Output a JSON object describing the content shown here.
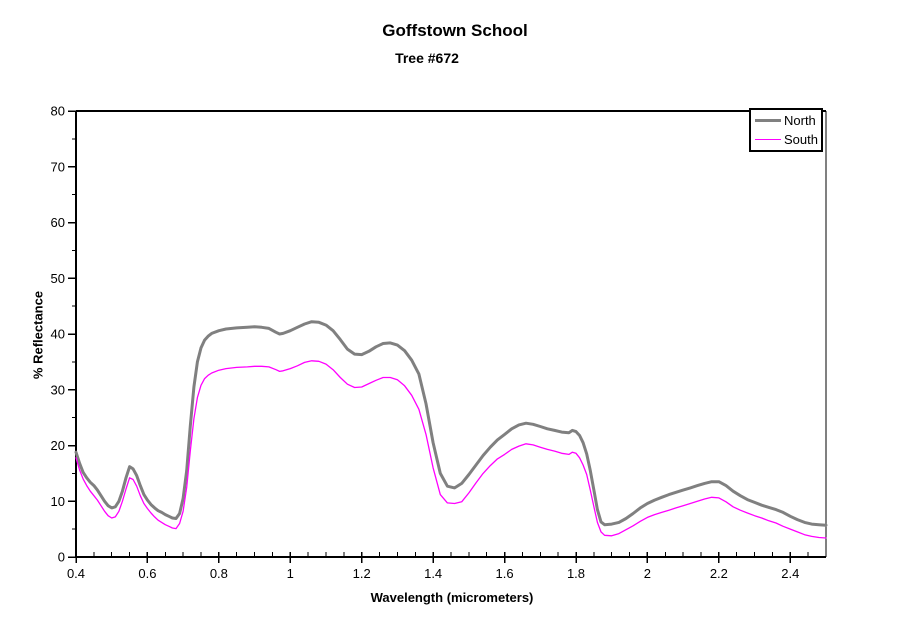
{
  "chart_data": {
    "type": "line",
    "title": "Goffstown School",
    "subtitle": "Tree #672",
    "xlabel": "Wavelength (micrometers)",
    "ylabel": "% Reflectance",
    "xlim": [
      0.4,
      2.5
    ],
    "ylim": [
      0,
      80
    ],
    "x_major_ticks": [
      0.4,
      0.6,
      0.8,
      1.0,
      1.2,
      1.4,
      1.6,
      1.8,
      2.0,
      2.2,
      2.4
    ],
    "x_tick_labels": [
      "0.4",
      "0.6",
      "0.8",
      "1",
      "1.2",
      "1.4",
      "1.6",
      "1.8",
      "2",
      "2.2",
      "2.4"
    ],
    "x_minor_step": 0.05,
    "y_major_ticks": [
      0,
      10,
      20,
      30,
      40,
      50,
      60,
      70,
      80
    ],
    "y_tick_labels": [
      "0",
      "10",
      "20",
      "30",
      "40",
      "50",
      "60",
      "70",
      "80"
    ],
    "y_minor_step": 5,
    "grid": false,
    "legend_position": "top-right",
    "axis_color": "#000000",
    "series": [
      {
        "name": "North",
        "color": "#808080",
        "line_width": 3,
        "points": [
          [
            0.4,
            18.8
          ],
          [
            0.41,
            16.8
          ],
          [
            0.42,
            15.2
          ],
          [
            0.43,
            14.2
          ],
          [
            0.44,
            13.4
          ],
          [
            0.45,
            12.8
          ],
          [
            0.46,
            12.0
          ],
          [
            0.47,
            11.0
          ],
          [
            0.48,
            10.0
          ],
          [
            0.49,
            9.2
          ],
          [
            0.5,
            8.8
          ],
          [
            0.51,
            9.0
          ],
          [
            0.52,
            10.0
          ],
          [
            0.53,
            11.8
          ],
          [
            0.54,
            14.2
          ],
          [
            0.55,
            16.2
          ],
          [
            0.56,
            15.8
          ],
          [
            0.57,
            14.6
          ],
          [
            0.58,
            12.8
          ],
          [
            0.59,
            11.2
          ],
          [
            0.6,
            10.2
          ],
          [
            0.61,
            9.4
          ],
          [
            0.62,
            8.8
          ],
          [
            0.63,
            8.3
          ],
          [
            0.64,
            8.0
          ],
          [
            0.65,
            7.6
          ],
          [
            0.66,
            7.3
          ],
          [
            0.67,
            7.0
          ],
          [
            0.68,
            6.9
          ],
          [
            0.69,
            7.8
          ],
          [
            0.7,
            10.5
          ],
          [
            0.71,
            15.5
          ],
          [
            0.72,
            23.5
          ],
          [
            0.73,
            30.5
          ],
          [
            0.74,
            35.0
          ],
          [
            0.75,
            37.5
          ],
          [
            0.76,
            38.9
          ],
          [
            0.77,
            39.6
          ],
          [
            0.78,
            40.1
          ],
          [
            0.8,
            40.6
          ],
          [
            0.82,
            40.9
          ],
          [
            0.85,
            41.1
          ],
          [
            0.88,
            41.2
          ],
          [
            0.9,
            41.3
          ],
          [
            0.92,
            41.2
          ],
          [
            0.94,
            41.0
          ],
          [
            0.96,
            40.3
          ],
          [
            0.97,
            40.0
          ],
          [
            0.98,
            40.1
          ],
          [
            1.0,
            40.6
          ],
          [
            1.02,
            41.2
          ],
          [
            1.04,
            41.8
          ],
          [
            1.06,
            42.2
          ],
          [
            1.08,
            42.1
          ],
          [
            1.1,
            41.6
          ],
          [
            1.12,
            40.6
          ],
          [
            1.14,
            39.0
          ],
          [
            1.16,
            37.3
          ],
          [
            1.18,
            36.4
          ],
          [
            1.2,
            36.3
          ],
          [
            1.22,
            36.9
          ],
          [
            1.24,
            37.7
          ],
          [
            1.26,
            38.3
          ],
          [
            1.28,
            38.4
          ],
          [
            1.3,
            38.0
          ],
          [
            1.32,
            37.0
          ],
          [
            1.34,
            35.3
          ],
          [
            1.36,
            32.8
          ],
          [
            1.38,
            27.5
          ],
          [
            1.4,
            20.5
          ],
          [
            1.42,
            15.0
          ],
          [
            1.44,
            12.7
          ],
          [
            1.46,
            12.4
          ],
          [
            1.48,
            13.2
          ],
          [
            1.5,
            14.8
          ],
          [
            1.52,
            16.5
          ],
          [
            1.54,
            18.2
          ],
          [
            1.56,
            19.7
          ],
          [
            1.58,
            21.0
          ],
          [
            1.6,
            22.0
          ],
          [
            1.62,
            23.0
          ],
          [
            1.64,
            23.7
          ],
          [
            1.66,
            24.0
          ],
          [
            1.68,
            23.8
          ],
          [
            1.7,
            23.4
          ],
          [
            1.72,
            23.0
          ],
          [
            1.74,
            22.7
          ],
          [
            1.76,
            22.4
          ],
          [
            1.78,
            22.3
          ],
          [
            1.79,
            22.7
          ],
          [
            1.8,
            22.5
          ],
          [
            1.81,
            21.8
          ],
          [
            1.82,
            20.5
          ],
          [
            1.83,
            18.5
          ],
          [
            1.84,
            15.5
          ],
          [
            1.85,
            12.0
          ],
          [
            1.86,
            8.5
          ],
          [
            1.87,
            6.3
          ],
          [
            1.88,
            5.8
          ],
          [
            1.9,
            5.9
          ],
          [
            1.92,
            6.2
          ],
          [
            1.94,
            6.9
          ],
          [
            1.96,
            7.8
          ],
          [
            1.98,
            8.8
          ],
          [
            2.0,
            9.6
          ],
          [
            2.02,
            10.2
          ],
          [
            2.04,
            10.7
          ],
          [
            2.06,
            11.2
          ],
          [
            2.08,
            11.6
          ],
          [
            2.1,
            12.0
          ],
          [
            2.12,
            12.4
          ],
          [
            2.14,
            12.8
          ],
          [
            2.16,
            13.2
          ],
          [
            2.18,
            13.5
          ],
          [
            2.2,
            13.5
          ],
          [
            2.22,
            12.8
          ],
          [
            2.24,
            11.8
          ],
          [
            2.26,
            11.0
          ],
          [
            2.28,
            10.3
          ],
          [
            2.3,
            9.8
          ],
          [
            2.32,
            9.3
          ],
          [
            2.34,
            8.9
          ],
          [
            2.36,
            8.5
          ],
          [
            2.38,
            8.0
          ],
          [
            2.4,
            7.3
          ],
          [
            2.42,
            6.7
          ],
          [
            2.44,
            6.2
          ],
          [
            2.46,
            5.9
          ],
          [
            2.48,
            5.8
          ],
          [
            2.5,
            5.7
          ]
        ]
      },
      {
        "name": "South",
        "color": "#ff00ff",
        "line_width": 1.3,
        "points": [
          [
            0.4,
            17.8
          ],
          [
            0.41,
            15.6
          ],
          [
            0.42,
            14.0
          ],
          [
            0.43,
            12.8
          ],
          [
            0.44,
            11.8
          ],
          [
            0.45,
            11.0
          ],
          [
            0.46,
            10.2
          ],
          [
            0.47,
            9.2
          ],
          [
            0.48,
            8.2
          ],
          [
            0.49,
            7.4
          ],
          [
            0.5,
            7.0
          ],
          [
            0.51,
            7.2
          ],
          [
            0.52,
            8.2
          ],
          [
            0.53,
            10.0
          ],
          [
            0.54,
            12.2
          ],
          [
            0.55,
            14.2
          ],
          [
            0.56,
            13.9
          ],
          [
            0.57,
            12.7
          ],
          [
            0.58,
            11.0
          ],
          [
            0.59,
            9.6
          ],
          [
            0.6,
            8.7
          ],
          [
            0.61,
            7.9
          ],
          [
            0.62,
            7.2
          ],
          [
            0.63,
            6.6
          ],
          [
            0.64,
            6.2
          ],
          [
            0.65,
            5.8
          ],
          [
            0.66,
            5.5
          ],
          [
            0.67,
            5.2
          ],
          [
            0.68,
            5.1
          ],
          [
            0.69,
            6.0
          ],
          [
            0.7,
            8.2
          ],
          [
            0.71,
            12.5
          ],
          [
            0.72,
            19.0
          ],
          [
            0.73,
            24.8
          ],
          [
            0.74,
            28.6
          ],
          [
            0.75,
            30.8
          ],
          [
            0.76,
            32.0
          ],
          [
            0.77,
            32.6
          ],
          [
            0.78,
            33.0
          ],
          [
            0.8,
            33.5
          ],
          [
            0.82,
            33.8
          ],
          [
            0.85,
            34.0
          ],
          [
            0.88,
            34.1
          ],
          [
            0.9,
            34.2
          ],
          [
            0.92,
            34.2
          ],
          [
            0.94,
            34.1
          ],
          [
            0.96,
            33.6
          ],
          [
            0.97,
            33.3
          ],
          [
            0.98,
            33.4
          ],
          [
            1.0,
            33.8
          ],
          [
            1.02,
            34.3
          ],
          [
            1.04,
            34.9
          ],
          [
            1.06,
            35.2
          ],
          [
            1.08,
            35.1
          ],
          [
            1.1,
            34.6
          ],
          [
            1.12,
            33.6
          ],
          [
            1.14,
            32.2
          ],
          [
            1.16,
            31.0
          ],
          [
            1.18,
            30.4
          ],
          [
            1.2,
            30.5
          ],
          [
            1.22,
            31.1
          ],
          [
            1.24,
            31.7
          ],
          [
            1.26,
            32.2
          ],
          [
            1.28,
            32.2
          ],
          [
            1.3,
            31.8
          ],
          [
            1.32,
            30.7
          ],
          [
            1.34,
            29.0
          ],
          [
            1.36,
            26.5
          ],
          [
            1.38,
            22.0
          ],
          [
            1.4,
            16.0
          ],
          [
            1.42,
            11.2
          ],
          [
            1.44,
            9.7
          ],
          [
            1.46,
            9.6
          ],
          [
            1.48,
            9.9
          ],
          [
            1.5,
            11.5
          ],
          [
            1.52,
            13.3
          ],
          [
            1.54,
            15.0
          ],
          [
            1.56,
            16.4
          ],
          [
            1.58,
            17.6
          ],
          [
            1.6,
            18.4
          ],
          [
            1.62,
            19.3
          ],
          [
            1.64,
            19.9
          ],
          [
            1.66,
            20.3
          ],
          [
            1.68,
            20.1
          ],
          [
            1.7,
            19.7
          ],
          [
            1.72,
            19.3
          ],
          [
            1.74,
            19.0
          ],
          [
            1.76,
            18.6
          ],
          [
            1.78,
            18.4
          ],
          [
            1.79,
            18.8
          ],
          [
            1.8,
            18.6
          ],
          [
            1.81,
            17.8
          ],
          [
            1.82,
            16.5
          ],
          [
            1.83,
            14.8
          ],
          [
            1.84,
            12.0
          ],
          [
            1.85,
            9.0
          ],
          [
            1.86,
            6.2
          ],
          [
            1.87,
            4.5
          ],
          [
            1.88,
            3.9
          ],
          [
            1.9,
            3.8
          ],
          [
            1.92,
            4.2
          ],
          [
            1.94,
            4.9
          ],
          [
            1.96,
            5.6
          ],
          [
            1.98,
            6.4
          ],
          [
            2.0,
            7.1
          ],
          [
            2.02,
            7.6
          ],
          [
            2.04,
            8.0
          ],
          [
            2.06,
            8.4
          ],
          [
            2.08,
            8.8
          ],
          [
            2.1,
            9.2
          ],
          [
            2.12,
            9.6
          ],
          [
            2.14,
            10.0
          ],
          [
            2.16,
            10.4
          ],
          [
            2.18,
            10.7
          ],
          [
            2.2,
            10.6
          ],
          [
            2.22,
            9.9
          ],
          [
            2.24,
            9.0
          ],
          [
            2.26,
            8.4
          ],
          [
            2.28,
            7.9
          ],
          [
            2.3,
            7.4
          ],
          [
            2.32,
            7.0
          ],
          [
            2.34,
            6.5
          ],
          [
            2.36,
            6.1
          ],
          [
            2.38,
            5.5
          ],
          [
            2.4,
            5.0
          ],
          [
            2.42,
            4.5
          ],
          [
            2.44,
            4.0
          ],
          [
            2.46,
            3.7
          ],
          [
            2.48,
            3.5
          ],
          [
            2.5,
            3.4
          ]
        ]
      }
    ]
  }
}
